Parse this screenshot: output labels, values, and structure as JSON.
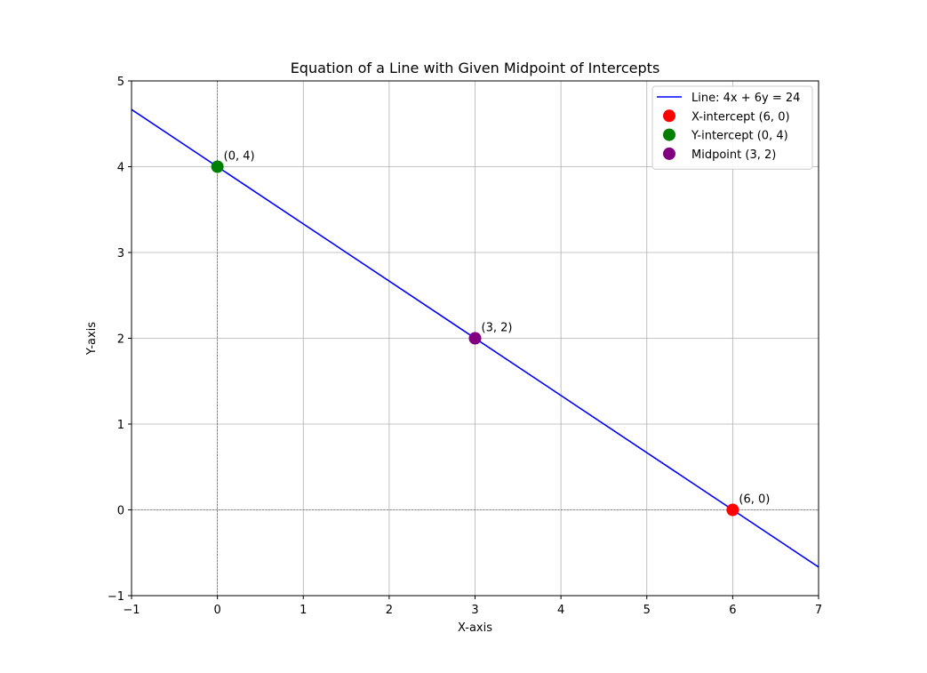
{
  "chart_data": {
    "type": "line",
    "title": "Equation of a Line with Given Midpoint of Intercepts",
    "xlabel": "X-axis",
    "ylabel": "Y-axis",
    "xlim": [
      -1,
      7
    ],
    "ylim": [
      -1,
      5
    ],
    "xticks": [
      -1,
      0,
      1,
      2,
      3,
      4,
      5,
      6,
      7
    ],
    "yticks": [
      -1,
      0,
      1,
      2,
      3,
      4,
      5
    ],
    "xtick_labels": [
      "−1",
      "0",
      "1",
      "2",
      "3",
      "4",
      "5",
      "6",
      "7"
    ],
    "ytick_labels": [
      "−1",
      "0",
      "1",
      "2",
      "3",
      "4",
      "5"
    ],
    "grid": true,
    "legend_position": "top-right",
    "series": [
      {
        "name": "Line: 4x + 6y = 24",
        "kind": "line",
        "color": "#0000ff",
        "points": [
          [
            -1,
            4.6667
          ],
          [
            7,
            -0.6667
          ]
        ]
      },
      {
        "name": "X-intercept (6, 0)",
        "kind": "point",
        "color": "#ff0000",
        "x": 6,
        "y": 0,
        "annotation": "(6, 0)"
      },
      {
        "name": "Y-intercept (0, 4)",
        "kind": "point",
        "color": "#008000",
        "x": 0,
        "y": 4,
        "annotation": "(0, 4)"
      },
      {
        "name": "Midpoint (3, 2)",
        "kind": "point",
        "color": "#800080",
        "x": 3,
        "y": 2,
        "annotation": "(3, 2)"
      }
    ],
    "axis_lines": [
      {
        "orientation": "horizontal",
        "value": 0,
        "color": "#555555"
      },
      {
        "orientation": "vertical",
        "value": 0,
        "color": "#555555"
      }
    ],
    "colors": {
      "grid": "#b0b0b0",
      "frame": "#000000"
    }
  }
}
